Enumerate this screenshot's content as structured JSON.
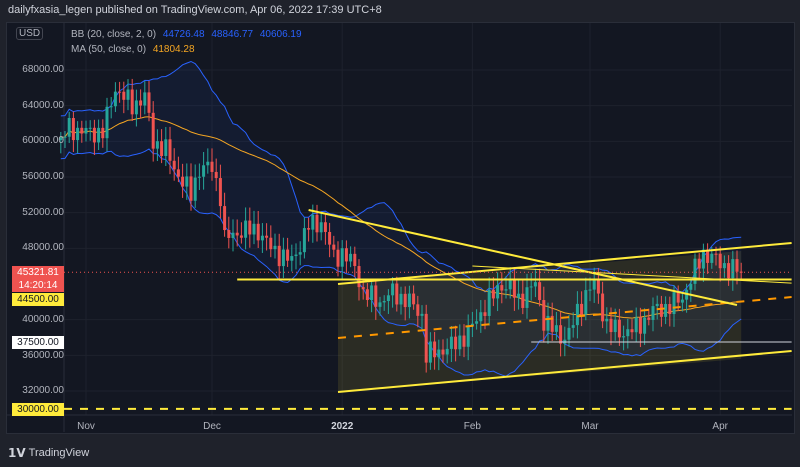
{
  "header": {
    "publisher": "dailyfxasia_legen published on TradingView.com, Apr 06, 2022 17:39 UTC+8"
  },
  "currency_badge": "USD",
  "legend": {
    "bb": {
      "label": "BB (20, close, 2, 0)",
      "basis": "44726.48",
      "upper": "48846.77",
      "lower": "40606.19",
      "color": "#2962ff"
    },
    "ma": {
      "label": "MA (50, close, 0)",
      "value": "41804.28",
      "color": "#f5a623"
    }
  },
  "price_axis": {
    "ticks": [
      "68000.00",
      "64000.00",
      "60000.00",
      "56000.00",
      "52000.00",
      "48000.00",
      "40000.00",
      "36000.00",
      "32000.00"
    ],
    "tick_values": [
      68000,
      64000,
      60000,
      56000,
      52000,
      48000,
      40000,
      36000,
      32000
    ],
    "last_price": "45321.81",
    "countdown": "14:20:14",
    "tags": [
      {
        "text": "44500.00",
        "value": 44500,
        "bg": "#ffeb3b",
        "fg": "#131722"
      },
      {
        "text": "37500.00",
        "value": 37500,
        "bg": "#ffffff",
        "fg": "#131722"
      },
      {
        "text": "30000.00",
        "value": 30000,
        "bg": "#ffeb3b",
        "fg": "#131722"
      }
    ]
  },
  "time_axis": [
    {
      "label": "Nov",
      "date": "2021-11-01"
    },
    {
      "label": "Dec",
      "date": "2021-12-01"
    },
    {
      "label": "2022",
      "date": "2022-01-01"
    },
    {
      "label": "Feb",
      "date": "2022-02-01"
    },
    {
      "label": "Mar",
      "date": "2022-03-01"
    },
    {
      "label": "Apr",
      "date": "2022-04-01"
    }
  ],
  "chart_data": {
    "type": "candlestick",
    "ylim": [
      28000,
      72000
    ],
    "colors": {
      "up": "#26a69a",
      "down": "#ef5350"
    },
    "closes": [
      [
        "2021-10-26",
        60000
      ],
      [
        "2021-10-28",
        61500
      ],
      [
        "2021-11-01",
        61000
      ],
      [
        "2021-11-05",
        61000
      ],
      [
        "2021-11-08",
        66000
      ],
      [
        "2021-11-10",
        65000
      ],
      [
        "2021-11-12",
        64000
      ],
      [
        "2021-11-15",
        65000
      ],
      [
        "2021-11-17",
        60000
      ],
      [
        "2021-11-20",
        59000
      ],
      [
        "2021-11-22",
        57000
      ],
      [
        "2021-11-26",
        54000
      ],
      [
        "2021-11-28",
        57000
      ],
      [
        "2021-12-01",
        57000
      ],
      [
        "2021-12-03",
        54000
      ],
      [
        "2021-12-04",
        49000
      ],
      [
        "2021-12-08",
        50000
      ],
      [
        "2021-12-12",
        50000
      ],
      [
        "2021-12-15",
        48000
      ],
      [
        "2021-12-20",
        46500
      ],
      [
        "2021-12-24",
        50500
      ],
      [
        "2021-12-27",
        51000
      ],
      [
        "2021-12-30",
        47000
      ],
      [
        "2022-01-01",
        47500
      ],
      [
        "2022-01-04",
        46000
      ],
      [
        "2022-01-06",
        43000
      ],
      [
        "2022-01-10",
        42000
      ],
      [
        "2022-01-13",
        43000
      ],
      [
        "2022-01-17",
        42000
      ],
      [
        "2022-01-20",
        40500
      ],
      [
        "2022-01-21",
        36000
      ],
      [
        "2022-01-24",
        36500
      ],
      [
        "2022-01-27",
        37000
      ],
      [
        "2022-01-31",
        38500
      ],
      [
        "2022-02-04",
        41500
      ],
      [
        "2022-02-08",
        44000
      ],
      [
        "2022-02-10",
        43500
      ],
      [
        "2022-02-12",
        42200
      ],
      [
        "2022-02-16",
        44000
      ],
      [
        "2022-02-18",
        40000
      ],
      [
        "2022-02-22",
        38000
      ],
      [
        "2022-02-24",
        38500
      ],
      [
        "2022-02-28",
        43000
      ],
      [
        "2022-03-02",
        44000
      ],
      [
        "2022-03-05",
        39500
      ],
      [
        "2022-03-08",
        38500
      ],
      [
        "2022-03-12",
        39000
      ],
      [
        "2022-03-16",
        41000
      ],
      [
        "2022-03-20",
        41500
      ],
      [
        "2022-03-23",
        42500
      ],
      [
        "2022-03-25",
        44500
      ],
      [
        "2022-03-28",
        47500
      ],
      [
        "2022-03-30",
        47000
      ],
      [
        "2022-04-02",
        46000
      ],
      [
        "2022-04-06",
        45321.81
      ]
    ],
    "drawings": [
      {
        "kind": "channel-fill",
        "from": [
          "2021-12-31",
          44000,
          31890
        ],
        "to": [
          "2022-04-06",
          47700,
          35600
        ],
        "color": "#ffeb3b"
      },
      {
        "kind": "line",
        "name": "channel-upper",
        "from": [
          "2021-12-31",
          44000
        ],
        "to": [
          "2022-04-18",
          48600
        ],
        "color": "#ffeb3b",
        "dash": false
      },
      {
        "kind": "line",
        "name": "channel-lower",
        "from": [
          "2021-12-31",
          31890
        ],
        "to": [
          "2022-04-18",
          36490
        ],
        "color": "#ffeb3b",
        "dash": false
      },
      {
        "kind": "line",
        "name": "channel-mid",
        "from": [
          "2021-12-31",
          37950
        ],
        "to": [
          "2022-04-18",
          42540
        ],
        "color": "#ff9800",
        "dash": true
      },
      {
        "kind": "line",
        "name": "support-44500",
        "from": [
          "2021-12-07",
          44500
        ],
        "to": [
          "2022-04-18",
          44500
        ],
        "color": "#ffeb3b",
        "dash": false
      },
      {
        "kind": "line",
        "name": "descending-trendline",
        "from": [
          "2021-12-24",
          52300
        ],
        "to": [
          "2022-04-05",
          41650
        ],
        "color": "#ffeb3b",
        "dash": false
      },
      {
        "kind": "line",
        "name": "thin-trendline",
        "from": [
          "2022-02-01",
          46020
        ],
        "to": [
          "2022-04-18",
          44100
        ],
        "color": "#ffeb3b",
        "dash": false
      },
      {
        "kind": "line",
        "name": "level-37500",
        "from": [
          "2022-02-15",
          37500
        ],
        "to": [
          "2022-04-18",
          37500
        ],
        "color": "#d1d4dc",
        "dash": false
      },
      {
        "kind": "line",
        "name": "level-30000",
        "from": [
          "2021-10-20",
          30000
        ],
        "to": [
          "2022-04-18",
          30000
        ],
        "color": "#ffeb3b",
        "dash": true
      }
    ]
  },
  "footer": {
    "brand": "TradingView"
  }
}
